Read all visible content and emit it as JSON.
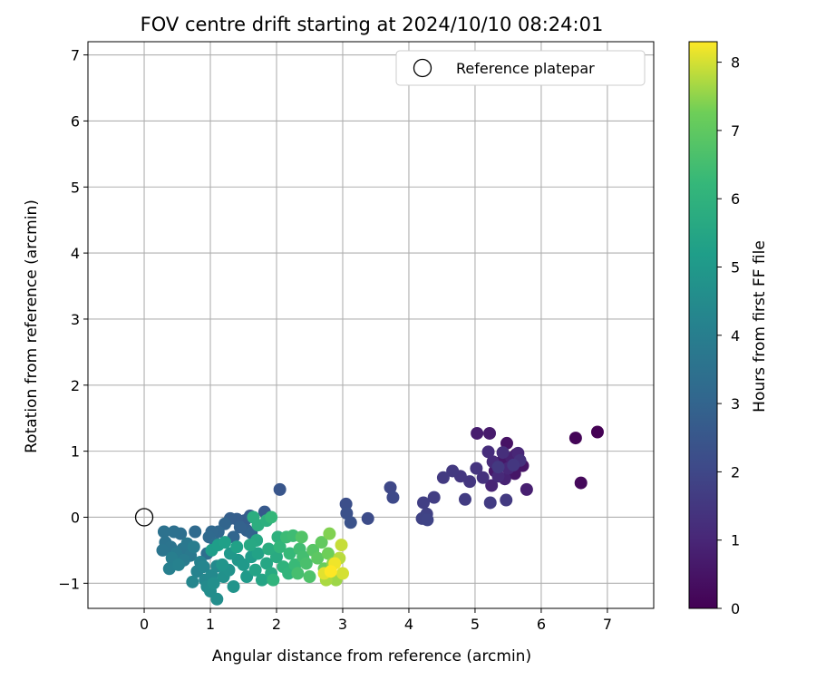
{
  "chart_data": {
    "type": "scatter",
    "title": "FOV centre drift starting at 2024/10/10 08:24:01",
    "xlabel": "Angular distance from reference (arcmin)",
    "ylabel": "Rotation from reference (arcmin)",
    "xlim": [
      -0.85,
      7.7
    ],
    "ylim": [
      -1.38,
      7.2
    ],
    "xticks": [
      "0",
      "1",
      "2",
      "3",
      "4",
      "5",
      "6",
      "7"
    ],
    "yticks": [
      "−1",
      "0",
      "1",
      "2",
      "3",
      "4",
      "5",
      "6",
      "7"
    ],
    "grid": true,
    "legend": {
      "placement": "top-right",
      "entries": [
        "Reference platepar"
      ]
    },
    "reference_point": {
      "x": 0,
      "y": 0
    },
    "colorbar": {
      "label": "Hours from first FF file",
      "colormap": "viridis",
      "range": [
        0,
        8.3
      ],
      "ticks": [
        "0",
        "1",
        "2",
        "3",
        "4",
        "5",
        "6",
        "7",
        "8"
      ]
    },
    "series": [
      {
        "points": [
          [
            6.85,
            1.29,
            0.0
          ],
          [
            6.52,
            1.2,
            0.1
          ],
          [
            6.6,
            0.52,
            0.2
          ],
          [
            5.62,
            0.95,
            0.4
          ],
          [
            5.48,
            1.12,
            0.45
          ],
          [
            5.72,
            0.78,
            0.5
          ],
          [
            5.6,
            0.66,
            0.55
          ],
          [
            5.4,
            0.84,
            0.6
          ],
          [
            5.3,
            0.7,
            0.65
          ],
          [
            5.22,
            1.27,
            0.7
          ],
          [
            5.03,
            1.27,
            0.75
          ],
          [
            5.78,
            0.42,
            0.8
          ],
          [
            5.55,
            0.9,
            0.85
          ],
          [
            5.45,
            0.58,
            0.9
          ],
          [
            5.25,
            0.48,
            0.95
          ],
          [
            5.65,
            0.97,
            1.0
          ],
          [
            5.5,
            0.74,
            1.05
          ],
          [
            5.35,
            0.62,
            1.1
          ],
          [
            5.27,
            0.84,
            1.15
          ],
          [
            5.2,
            0.99,
            1.2
          ],
          [
            5.42,
            0.98,
            1.25
          ],
          [
            5.68,
            0.86,
            1.3
          ],
          [
            5.12,
            0.6,
            1.35
          ],
          [
            5.02,
            0.74,
            1.4
          ],
          [
            4.92,
            0.54,
            1.45
          ],
          [
            4.78,
            0.62,
            1.5
          ],
          [
            4.66,
            0.7,
            1.55
          ],
          [
            4.52,
            0.6,
            1.6
          ],
          [
            5.47,
            0.26,
            1.6
          ],
          [
            5.23,
            0.22,
            1.62
          ],
          [
            4.85,
            0.27,
            1.65
          ],
          [
            5.35,
            0.76,
            1.55
          ],
          [
            5.58,
            0.79,
            1.5
          ],
          [
            4.38,
            0.3,
            1.7
          ],
          [
            4.22,
            0.22,
            1.75
          ],
          [
            4.27,
            0.05,
            1.8
          ],
          [
            4.2,
            -0.02,
            1.85
          ],
          [
            4.28,
            -0.04,
            1.9
          ],
          [
            3.72,
            0.45,
            2.0
          ],
          [
            3.76,
            0.3,
            2.05
          ],
          [
            3.38,
            -0.02,
            2.15
          ],
          [
            3.05,
            0.2,
            2.25
          ],
          [
            3.06,
            0.06,
            2.3
          ],
          [
            3.12,
            -0.08,
            2.35
          ],
          [
            2.05,
            0.42,
            2.5
          ],
          [
            1.82,
            0.08,
            2.6
          ],
          [
            1.6,
            0.02,
            2.65
          ],
          [
            1.52,
            -0.05,
            2.7
          ],
          [
            1.4,
            -0.03,
            2.75
          ],
          [
            1.3,
            -0.02,
            2.8
          ],
          [
            1.55,
            -0.2,
            2.85
          ],
          [
            1.45,
            -0.15,
            2.9
          ],
          [
            1.62,
            -0.24,
            2.95
          ],
          [
            1.22,
            -0.1,
            3.0
          ],
          [
            1.35,
            -0.3,
            3.05
          ],
          [
            1.12,
            -0.22,
            3.1
          ],
          [
            1.02,
            -0.22,
            3.15
          ],
          [
            0.98,
            -0.3,
            3.2
          ],
          [
            0.77,
            -0.22,
            3.25
          ],
          [
            1.08,
            -0.4,
            3.3
          ],
          [
            0.95,
            -0.55,
            3.35
          ],
          [
            0.55,
            -0.25,
            3.4
          ],
          [
            0.45,
            -0.22,
            3.45
          ],
          [
            0.3,
            -0.22,
            3.5
          ],
          [
            0.32,
            -0.38,
            3.55
          ],
          [
            0.4,
            -0.45,
            3.6
          ],
          [
            0.28,
            -0.5,
            3.65
          ],
          [
            0.58,
            -0.48,
            3.7
          ],
          [
            0.65,
            -0.4,
            3.75
          ],
          [
            0.7,
            -0.58,
            3.8
          ],
          [
            0.48,
            -0.55,
            3.85
          ],
          [
            0.6,
            -0.65,
            3.9
          ],
          [
            0.75,
            -0.45,
            3.95
          ],
          [
            0.42,
            -0.62,
            4.0
          ],
          [
            0.38,
            -0.78,
            4.05
          ],
          [
            0.52,
            -0.72,
            4.1
          ],
          [
            0.85,
            -0.68,
            4.15
          ],
          [
            0.8,
            -0.82,
            4.2
          ],
          [
            0.9,
            -0.75,
            4.25
          ],
          [
            0.73,
            -0.98,
            4.3
          ],
          [
            0.92,
            -0.95,
            4.35
          ],
          [
            1.02,
            -0.88,
            4.4
          ],
          [
            1.1,
            -0.74,
            4.45
          ],
          [
            0.95,
            -1.05,
            4.5
          ],
          [
            1.0,
            -1.12,
            4.55
          ],
          [
            1.1,
            -1.24,
            4.6
          ],
          [
            1.05,
            -1.0,
            4.65
          ],
          [
            1.2,
            -0.9,
            4.7
          ],
          [
            1.28,
            -0.8,
            4.75
          ],
          [
            1.35,
            -1.05,
            4.8
          ],
          [
            1.18,
            -0.72,
            4.85
          ],
          [
            1.42,
            -0.65,
            4.9
          ],
          [
            1.3,
            -0.55,
            4.95
          ],
          [
            1.5,
            -0.72,
            5.0
          ],
          [
            1.55,
            -0.9,
            5.05
          ],
          [
            1.62,
            -0.6,
            5.1
          ],
          [
            1.02,
            -0.5,
            5.15
          ],
          [
            1.12,
            -0.42,
            5.2
          ],
          [
            1.22,
            -0.38,
            5.25
          ],
          [
            1.4,
            -0.45,
            5.3
          ],
          [
            1.72,
            -0.55,
            5.35
          ],
          [
            1.68,
            -0.8,
            5.4
          ],
          [
            1.78,
            -0.95,
            5.45
          ],
          [
            1.85,
            -0.7,
            5.5
          ],
          [
            1.7,
            -0.35,
            5.55
          ],
          [
            1.6,
            -0.42,
            5.6
          ],
          [
            1.92,
            -0.85,
            5.65
          ],
          [
            2.0,
            -0.6,
            5.7
          ],
          [
            1.88,
            -0.48,
            5.75
          ],
          [
            1.65,
            0.0,
            5.8
          ],
          [
            1.72,
            -0.12,
            5.85
          ],
          [
            1.85,
            -0.05,
            5.9
          ],
          [
            2.02,
            -0.3,
            5.95
          ],
          [
            2.1,
            -0.75,
            6.0
          ],
          [
            1.95,
            -0.95,
            6.05
          ],
          [
            2.18,
            -0.85,
            6.1
          ],
          [
            2.05,
            -0.45,
            6.15
          ],
          [
            1.92,
            0.0,
            6.2
          ],
          [
            2.2,
            -0.55,
            6.25
          ],
          [
            2.28,
            -0.72,
            6.3
          ],
          [
            2.15,
            -0.3,
            6.35
          ],
          [
            2.25,
            -0.28,
            6.4
          ],
          [
            2.35,
            -0.48,
            6.45
          ],
          [
            2.4,
            -0.6,
            6.5
          ],
          [
            2.32,
            -0.85,
            6.55
          ],
          [
            2.45,
            -0.7,
            6.6
          ],
          [
            2.5,
            -0.9,
            6.7
          ],
          [
            2.38,
            -0.3,
            6.75
          ],
          [
            2.55,
            -0.5,
            6.85
          ],
          [
            2.62,
            -0.62,
            6.95
          ],
          [
            2.68,
            -0.38,
            7.05
          ],
          [
            2.72,
            -0.78,
            7.15
          ],
          [
            2.78,
            -0.55,
            7.25
          ],
          [
            2.8,
            -0.25,
            7.4
          ],
          [
            2.85,
            -0.7,
            7.5
          ],
          [
            2.9,
            -0.95,
            7.6
          ],
          [
            2.75,
            -0.95,
            7.7
          ],
          [
            2.95,
            -0.62,
            7.8
          ],
          [
            2.98,
            -0.42,
            7.9
          ],
          [
            3.0,
            -0.85,
            8.0
          ],
          [
            2.72,
            -0.85,
            8.1
          ],
          [
            2.88,
            -0.7,
            8.2
          ],
          [
            2.82,
            -0.82,
            8.3
          ]
        ]
      }
    ]
  }
}
